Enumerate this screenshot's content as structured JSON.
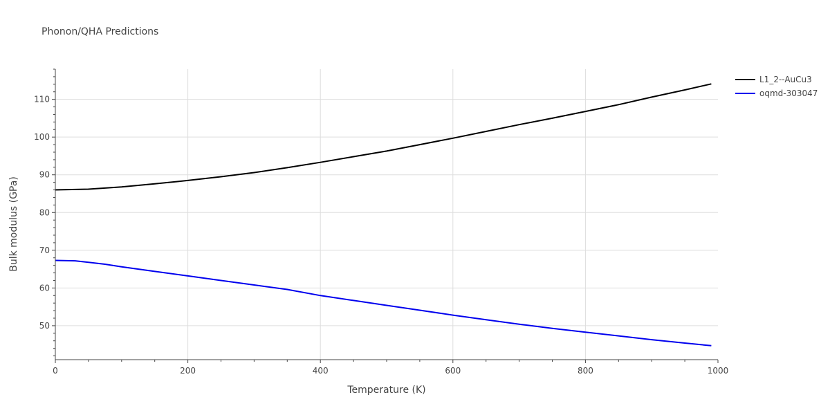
{
  "chart_data": {
    "type": "line",
    "title": "Phonon/QHA Predictions",
    "xlabel": "Temperature (K)",
    "ylabel": "Bulk modulus (GPa)",
    "xlim": [
      0,
      1000
    ],
    "ylim": [
      41,
      118
    ],
    "xticks": [
      0,
      200,
      400,
      600,
      800,
      1000
    ],
    "yticks": [
      50,
      60,
      70,
      80,
      90,
      100,
      110
    ],
    "grid": true,
    "legend_position": "top-right",
    "series": [
      {
        "name": "L1_2--AuCu3",
        "color": "#000000",
        "x": [
          0,
          50,
          100,
          150,
          200,
          250,
          300,
          350,
          400,
          450,
          500,
          550,
          600,
          650,
          700,
          750,
          800,
          850,
          900,
          950,
          990
        ],
        "y": [
          86.0,
          86.2,
          86.8,
          87.6,
          88.5,
          89.5,
          90.6,
          91.9,
          93.3,
          94.8,
          96.3,
          98.0,
          99.7,
          101.5,
          103.3,
          105.0,
          106.8,
          108.6,
          110.6,
          112.5,
          114.1
        ]
      },
      {
        "name": "oqmd-303047",
        "color": "#0000ee",
        "x": [
          0,
          30,
          75,
          100,
          150,
          200,
          250,
          300,
          350,
          400,
          450,
          500,
          550,
          600,
          650,
          700,
          750,
          800,
          850,
          900,
          950,
          990
        ],
        "y": [
          67.3,
          67.2,
          66.3,
          65.6,
          64.4,
          63.2,
          62.0,
          60.8,
          59.6,
          58.0,
          56.7,
          55.4,
          54.1,
          52.8,
          51.6,
          50.4,
          49.3,
          48.3,
          47.3,
          46.3,
          45.4,
          44.7
        ]
      }
    ]
  }
}
